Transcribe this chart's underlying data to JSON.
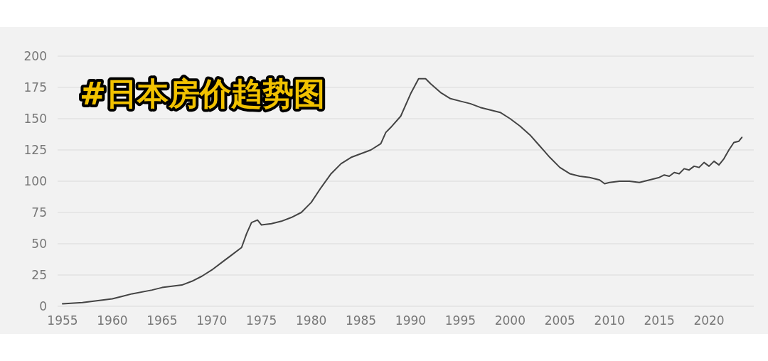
{
  "chart_data": {
    "type": "line",
    "title": "#日本房价趋势图",
    "x": [
      1955,
      1957,
      1959,
      1960,
      1961,
      1962,
      1964,
      1965,
      1966,
      1967,
      1968,
      1969,
      1970,
      1971,
      1972,
      1973,
      1973.5,
      1974,
      1974.6,
      1975,
      1976,
      1977,
      1978,
      1979,
      1980,
      1981,
      1982,
      1983,
      1984,
      1985,
      1986,
      1987,
      1987.5,
      1988,
      1989,
      1990,
      1990.8,
      1991.5,
      1992,
      1993,
      1994,
      1995,
      1996,
      1997,
      1998,
      1999,
      2000,
      2001,
      2002,
      2003,
      2004,
      2005,
      2006,
      2007,
      2008,
      2009,
      2009.5,
      2010,
      2011,
      2012,
      2013,
      2014,
      2015,
      2015.5,
      2016,
      2016.5,
      2017,
      2017.5,
      2018,
      2018.5,
      2019,
      2019.5,
      2020,
      2020.5,
      2021,
      2021.5,
      2022,
      2022.5,
      2023,
      2023.3
    ],
    "series": [
      {
        "color": "#444444",
        "values": [
          2,
          3,
          5,
          6,
          8,
          10,
          13,
          15,
          16,
          17,
          20,
          24,
          29,
          35,
          41,
          47,
          58,
          67,
          69,
          65,
          66,
          68,
          71,
          75,
          83,
          95,
          106,
          114,
          119,
          122,
          125,
          130,
          139,
          143,
          152,
          170,
          182,
          182,
          178,
          171,
          166,
          164,
          162,
          159,
          157,
          155,
          150,
          144,
          137,
          128,
          119,
          111,
          106,
          104,
          103,
          101,
          98,
          99,
          100,
          100,
          99,
          101,
          103,
          105,
          104,
          107,
          106,
          110,
          109,
          112,
          111,
          115,
          112,
          116,
          113,
          118,
          125,
          131,
          132,
          135
        ]
      }
    ],
    "xlim": [
      1954.5,
      2024.5
    ],
    "xticks": [
      1955,
      1960,
      1965,
      1970,
      1975,
      1980,
      1985,
      1990,
      1995,
      2000,
      2005,
      2010,
      2015,
      2020
    ],
    "ylim": [
      0,
      200
    ],
    "yticks": [
      0,
      25,
      50,
      75,
      100,
      125,
      150,
      175,
      200
    ],
    "grid": "y",
    "marker": "none",
    "line_style": "solid"
  }
}
